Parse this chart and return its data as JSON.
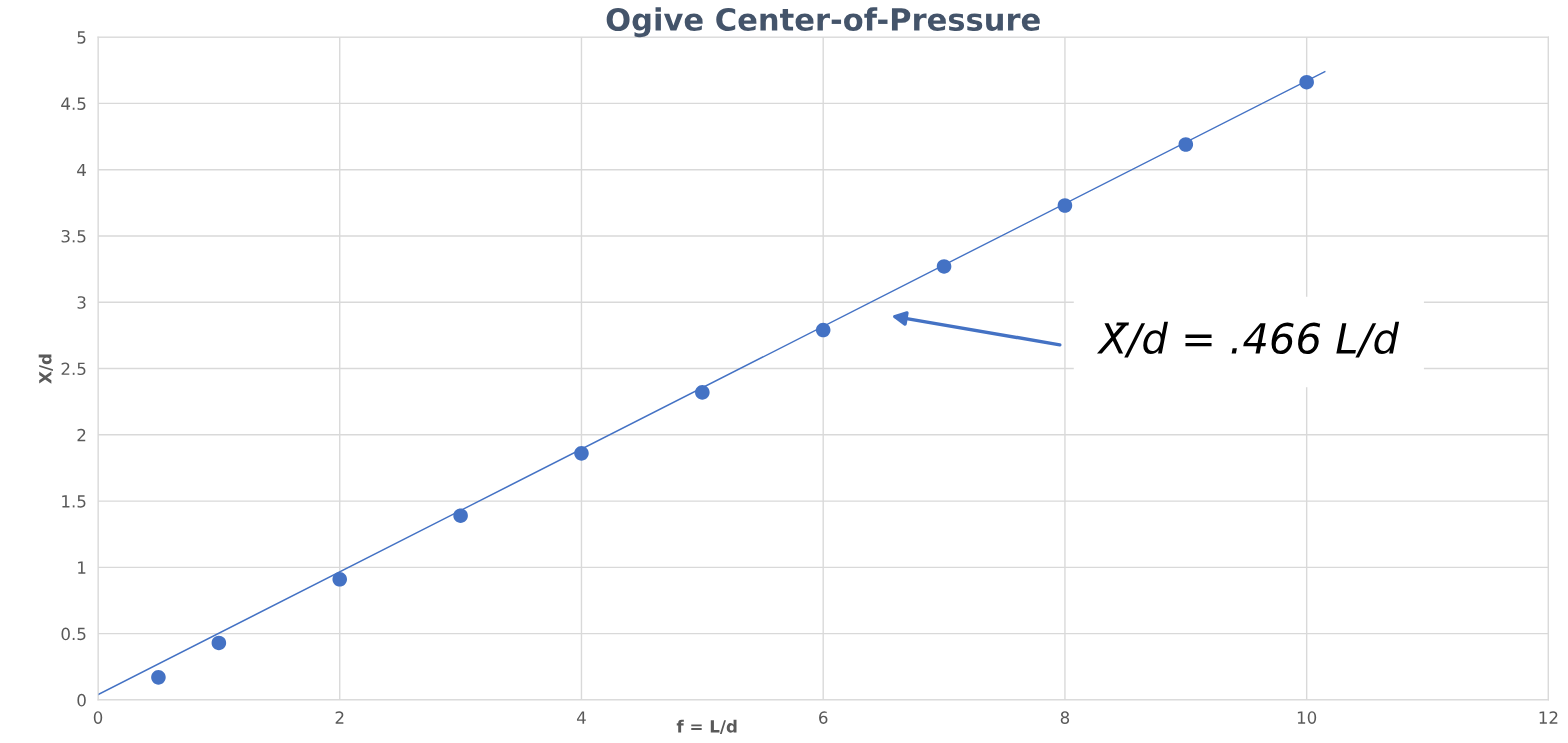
{
  "chart_data": {
    "type": "scatter",
    "title": "Ogive Center-of-Pressure",
    "xlabel": "f = L/d",
    "ylabel": "X/d",
    "x": [
      0.5,
      1,
      2,
      3,
      4,
      5,
      6,
      7,
      8,
      9,
      10
    ],
    "series": [
      {
        "color": "#4472c4",
        "marker": "circle",
        "values": [
          0.17,
          0.43,
          0.91,
          1.39,
          1.86,
          2.32,
          2.79,
          3.27,
          3.73,
          4.19,
          4.66
        ]
      },
      {
        "type": "line",
        "color": "#4472c4",
        "x": [
          0,
          10.15
        ],
        "values": [
          0.04,
          4.74
        ]
      }
    ],
    "annotations": [
      "X̄/d = .466 L/d"
    ],
    "xlim": [
      0,
      12
    ],
    "ylim": [
      0,
      5
    ],
    "xticks": [
      0,
      2,
      4,
      6,
      8,
      10,
      12
    ],
    "yticks": [
      0,
      0.5,
      1,
      1.5,
      2,
      2.5,
      3,
      3.5,
      4,
      4.5,
      5
    ],
    "grid": true
  }
}
